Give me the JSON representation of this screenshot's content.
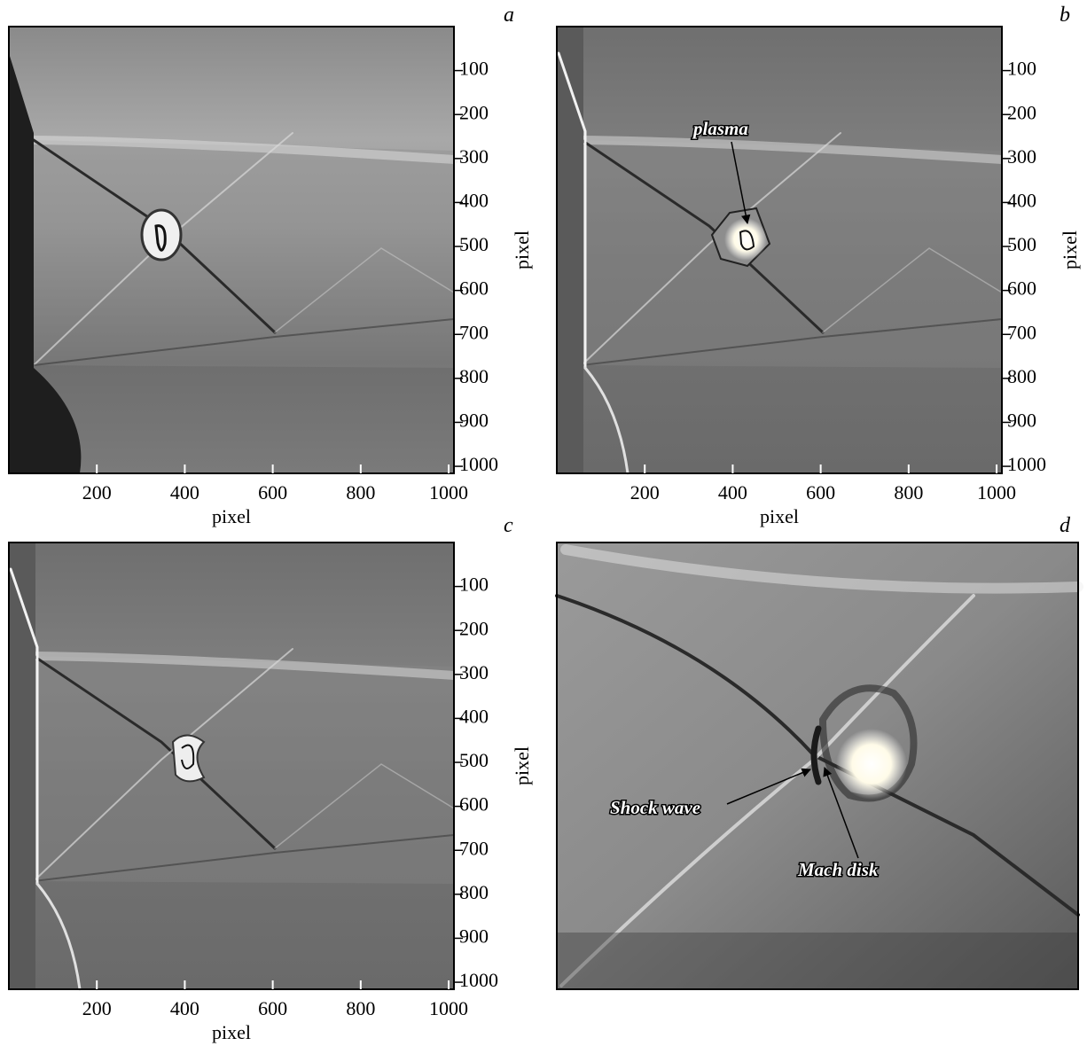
{
  "panels": [
    {
      "label": "a",
      "xlabel": "pixel",
      "ylabel": "pixel",
      "xlim": [
        0,
        1012
      ],
      "ylim": [
        0,
        1016
      ],
      "xticks": [
        200,
        400,
        600,
        800,
        1000
      ],
      "yticks": [
        100,
        200,
        300,
        400,
        500,
        600,
        700,
        800,
        900,
        1000
      ]
    },
    {
      "label": "b",
      "xlabel": "pixel",
      "ylabel": "pixel",
      "xlim": [
        0,
        1012
      ],
      "ylim": [
        0,
        1016
      ],
      "xticks": [
        200,
        400,
        600,
        800,
        1000
      ],
      "yticks": [
        100,
        200,
        300,
        400,
        500,
        600,
        700,
        800,
        900,
        1000
      ],
      "annotations": [
        "plasma"
      ]
    },
    {
      "label": "c",
      "xlabel": "pixel",
      "ylabel": "pixel",
      "xlim": [
        0,
        1012
      ],
      "ylim": [
        0,
        1016
      ],
      "xticks": [
        200,
        400,
        600,
        800,
        1000
      ],
      "yticks": [
        100,
        200,
        300,
        400,
        500,
        600,
        700,
        800,
        900,
        1000
      ]
    },
    {
      "label": "d",
      "annotations": [
        "Shock wave",
        "Mach disk"
      ]
    }
  ]
}
